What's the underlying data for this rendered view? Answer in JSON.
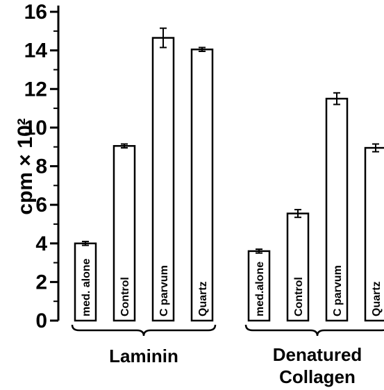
{
  "chart_data": {
    "type": "bar",
    "ylabel": "cpm × 10²",
    "ylim": [
      0,
      16
    ],
    "yticks": [
      "0",
      "2",
      "4",
      "6",
      "8",
      "10",
      "12",
      "14",
      "16"
    ],
    "grid": false,
    "groups": [
      {
        "label": "Laminin",
        "bars": [
          {
            "label": "med. alone",
            "value": 4.0,
            "error": 0.1
          },
          {
            "label": "Control",
            "value": 9.05,
            "error": 0.1
          },
          {
            "label": "C parvum",
            "value": 14.65,
            "error": 0.5
          },
          {
            "label": "Quartz",
            "value": 14.05,
            "error": 0.1
          }
        ]
      },
      {
        "label": "Denatured Collagen",
        "bars": [
          {
            "label": "med.alone",
            "value": 3.6,
            "error": 0.1
          },
          {
            "label": "Control",
            "value": 5.55,
            "error": 0.2
          },
          {
            "label": "C parvum",
            "value": 11.5,
            "error": 0.3
          },
          {
            "label": "Quartz",
            "value": 8.95,
            "error": 0.2
          }
        ]
      }
    ]
  }
}
